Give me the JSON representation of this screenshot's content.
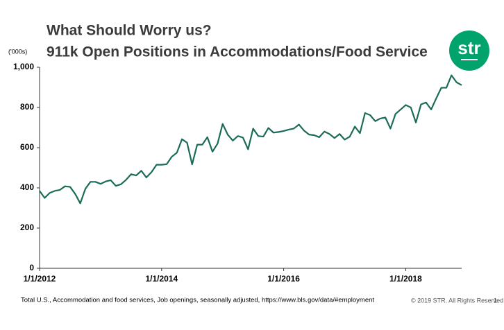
{
  "chart_data": {
    "type": "line",
    "title": "What Should Worry us?",
    "subtitle": "911k Open Positions in Accommodations/Food Service",
    "y_unit": "('000s)",
    "logo": "str",
    "source": "Total U.S., Accommodation and food services, Job openings, seasonally adjusted,  https://www.bls.gov/data/#employment",
    "copyright": "© 2019 STR. All Rights Reserved.",
    "page_number": "1",
    "categories": [
      "1/1/2012",
      null,
      null,
      null,
      null,
      null,
      null,
      null,
      null,
      null,
      null,
      null,
      null,
      null,
      null,
      null,
      null,
      null,
      null,
      null,
      null,
      null,
      null,
      null,
      "1/1/2014",
      null,
      null,
      null,
      null,
      null,
      null,
      null,
      null,
      null,
      null,
      null,
      null,
      null,
      null,
      null,
      null,
      null,
      null,
      null,
      null,
      null,
      null,
      null,
      "1/1/2016",
      null,
      null,
      null,
      null,
      null,
      null,
      null,
      null,
      null,
      null,
      null,
      null,
      null,
      null,
      null,
      null,
      null,
      null,
      null,
      null,
      null,
      null,
      null,
      "1/1/2018",
      null,
      null,
      null,
      null,
      null,
      null,
      null,
      null,
      null,
      null,
      null
    ],
    "series": [
      {
        "name": "Job openings",
        "color": "#1a6b58",
        "values": [
          385,
          350,
          375,
          385,
          390,
          408,
          405,
          370,
          323,
          395,
          430,
          430,
          420,
          432,
          438,
          410,
          418,
          440,
          468,
          462,
          485,
          452,
          478,
          515,
          515,
          518,
          555,
          575,
          642,
          625,
          517,
          615,
          615,
          652,
          580,
          620,
          718,
          665,
          635,
          658,
          650,
          592,
          695,
          658,
          655,
          698,
          675,
          678,
          683,
          690,
          695,
          715,
          685,
          665,
          662,
          652,
          680,
          668,
          648,
          668,
          640,
          655,
          705,
          672,
          772,
          762,
          732,
          745,
          750,
          695,
          768,
          790,
          812,
          800,
          725,
          815,
          825,
          790,
          845,
          898,
          898,
          960,
          925,
          911
        ]
      }
    ],
    "ylim": [
      0,
      1000
    ],
    "yticks": [
      0,
      200,
      400,
      600,
      800,
      {
        "value": 1000,
        "label": "1,000"
      }
    ],
    "grid": false
  }
}
